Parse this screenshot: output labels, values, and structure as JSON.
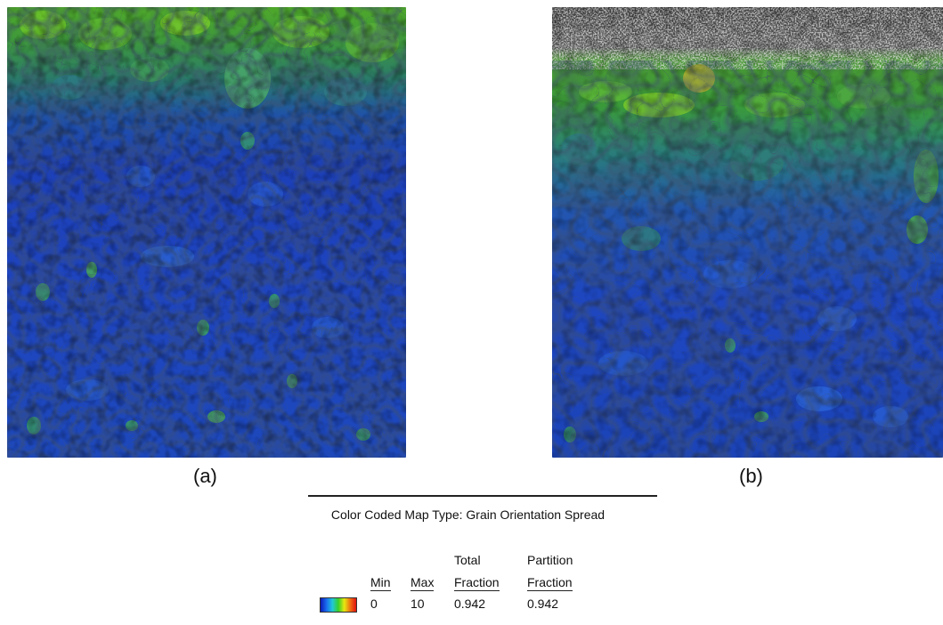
{
  "figure": {
    "panel_a_caption": "(a)",
    "panel_b_caption": "(b)"
  },
  "legend": {
    "title": "Color Coded Map Type: Grain Orientation Spread",
    "headers": {
      "min": "Min",
      "max": "Max",
      "total_line1": "Total",
      "total_line2": "Fraction",
      "partition_line1": "Partition",
      "partition_line2": "Fraction"
    },
    "values": {
      "min": "0",
      "max": "10",
      "total_fraction": "0.942",
      "partition_fraction": "0.942"
    },
    "colorbar_colors": [
      "#0a1ab8",
      "#1a6cf0",
      "#20c8d8",
      "#38d028",
      "#e8e810",
      "#f07010",
      "#e01010"
    ]
  }
}
